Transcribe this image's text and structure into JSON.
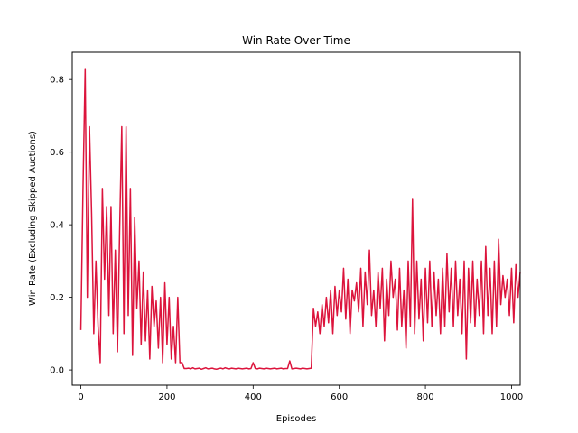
{
  "chart_data": {
    "type": "line",
    "title": "Win Rate Over Time",
    "xlabel": "Episodes",
    "ylabel": "Win Rate (Excluding Skipped Auctions)",
    "xlim": [
      -20,
      1020
    ],
    "ylim": [
      -0.042,
      0.875
    ],
    "xticks": [
      0,
      200,
      400,
      600,
      800,
      1000
    ],
    "yticks": [
      0.0,
      0.2,
      0.4,
      0.6,
      0.8
    ],
    "xtick_labels": [
      "0",
      "200",
      "400",
      "600",
      "800",
      "1000"
    ],
    "ytick_labels": [
      "0.0",
      "0.2",
      "0.4",
      "0.6",
      "0.8"
    ],
    "grid": false,
    "legend": "none",
    "series": [
      {
        "color": "#dc143c",
        "x_start": 0,
        "x_step": 5,
        "values": [
          0.11,
          0.5,
          0.83,
          0.2,
          0.67,
          0.43,
          0.1,
          0.3,
          0.12,
          0.02,
          0.5,
          0.25,
          0.45,
          0.15,
          0.45,
          0.1,
          0.33,
          0.05,
          0.38,
          0.67,
          0.1,
          0.67,
          0.15,
          0.5,
          0.04,
          0.42,
          0.17,
          0.3,
          0.07,
          0.27,
          0.08,
          0.22,
          0.03,
          0.23,
          0.12,
          0.19,
          0.06,
          0.2,
          0.02,
          0.24,
          0.07,
          0.2,
          0.03,
          0.12,
          0.02,
          0.2,
          0.02,
          0.02,
          0.004,
          0.004,
          0.005,
          0.003,
          0.006,
          0.003,
          0.004,
          0.005,
          0.002,
          0.004,
          0.006,
          0.003,
          0.004,
          0.005,
          0.003,
          0.002,
          0.004,
          0.005,
          0.003,
          0.006,
          0.004,
          0.003,
          0.005,
          0.004,
          0.003,
          0.005,
          0.004,
          0.003,
          0.004,
          0.005,
          0.003,
          0.004,
          0.02,
          0.004,
          0.003,
          0.005,
          0.004,
          0.003,
          0.005,
          0.004,
          0.003,
          0.004,
          0.005,
          0.003,
          0.004,
          0.005,
          0.003,
          0.004,
          0.004,
          0.025,
          0.003,
          0.004,
          0.005,
          0.004,
          0.003,
          0.005,
          0.004,
          0.003,
          0.004,
          0.005,
          0.17,
          0.12,
          0.16,
          0.1,
          0.18,
          0.12,
          0.2,
          0.13,
          0.22,
          0.1,
          0.23,
          0.15,
          0.22,
          0.16,
          0.28,
          0.14,
          0.25,
          0.1,
          0.22,
          0.19,
          0.24,
          0.16,
          0.28,
          0.12,
          0.27,
          0.18,
          0.33,
          0.15,
          0.22,
          0.12,
          0.27,
          0.17,
          0.28,
          0.08,
          0.25,
          0.15,
          0.3,
          0.2,
          0.25,
          0.11,
          0.28,
          0.12,
          0.22,
          0.06,
          0.3,
          0.12,
          0.47,
          0.1,
          0.3,
          0.14,
          0.25,
          0.08,
          0.28,
          0.13,
          0.3,
          0.12,
          0.27,
          0.15,
          0.25,
          0.1,
          0.28,
          0.12,
          0.32,
          0.16,
          0.28,
          0.12,
          0.3,
          0.15,
          0.25,
          0.1,
          0.3,
          0.03,
          0.28,
          0.13,
          0.3,
          0.12,
          0.25,
          0.15,
          0.3,
          0.1,
          0.34,
          0.15,
          0.28,
          0.1,
          0.3,
          0.12,
          0.36,
          0.18,
          0.26,
          0.2,
          0.25,
          0.15,
          0.28,
          0.13,
          0.29,
          0.2,
          0.27
        ]
      }
    ]
  }
}
